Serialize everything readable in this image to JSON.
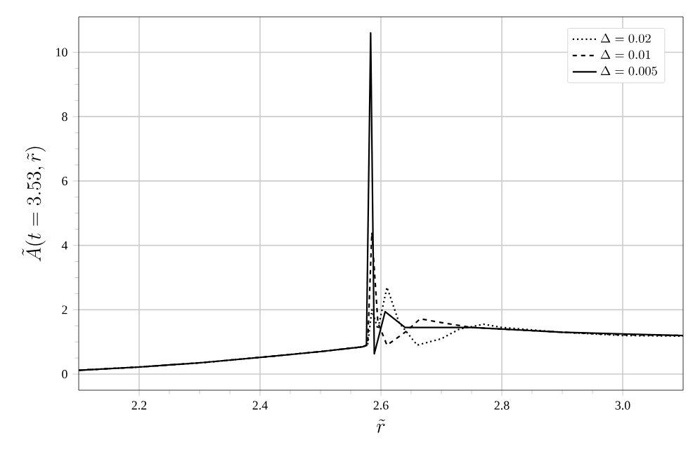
{
  "chart_data": {
    "type": "line",
    "xlabel": "\\tilde{r}",
    "ylabel": "\\tilde{A}(t=3.53,\\tilde{r})",
    "xlim": [
      2.1,
      3.1
    ],
    "xticks": [
      2.2,
      2.4,
      2.6,
      2.8,
      {
        "value": 3,
        "label": "3.0"
      }
    ],
    "ylim": [
      -0.5,
      11.1
    ],
    "yticks": [
      0,
      2,
      4,
      6,
      8,
      10
    ],
    "grid": true,
    "legend": "top right",
    "series": [
      {
        "name": "\\Delta = 0.02",
        "color": "#000000",
        "line_style": "dotted",
        "x": [
          2.1,
          2.2,
          2.3,
          2.4,
          2.5,
          2.57,
          2.578,
          2.585,
          2.595,
          2.61,
          2.63,
          2.66,
          2.7,
          2.73,
          2.77,
          2.8,
          2.9,
          3.0,
          3.1
        ],
        "values": [
          0.12,
          0.22,
          0.35,
          0.52,
          0.7,
          0.85,
          0.9,
          2.0,
          1.4,
          2.7,
          1.6,
          0.9,
          1.1,
          1.4,
          1.55,
          1.45,
          1.3,
          1.2,
          1.18
        ]
      },
      {
        "name": "\\Delta = 0.01",
        "color": "#000000",
        "line_style": "dashed",
        "x": [
          2.1,
          2.2,
          2.3,
          2.4,
          2.5,
          2.57,
          2.578,
          2.585,
          2.595,
          2.61,
          2.64,
          2.665,
          2.7,
          2.75,
          2.8,
          2.9,
          3.0,
          3.1
        ],
        "values": [
          0.12,
          0.22,
          0.35,
          0.52,
          0.7,
          0.85,
          0.9,
          4.4,
          1.6,
          0.9,
          1.3,
          1.72,
          1.6,
          1.45,
          1.4,
          1.3,
          1.22,
          1.2
        ]
      },
      {
        "name": "\\Delta = 0.005",
        "color": "#000000",
        "line_style": "solid",
        "x": [
          2.1,
          2.2,
          2.3,
          2.4,
          2.5,
          2.57,
          2.576,
          2.583,
          2.587,
          2.589,
          2.607,
          2.64,
          2.75,
          2.8,
          2.9,
          3.0,
          3.1
        ],
        "values": [
          0.12,
          0.22,
          0.35,
          0.52,
          0.7,
          0.85,
          0.9,
          10.6,
          4.0,
          0.63,
          1.94,
          1.45,
          1.45,
          1.4,
          1.3,
          1.25,
          1.2
        ]
      }
    ]
  }
}
